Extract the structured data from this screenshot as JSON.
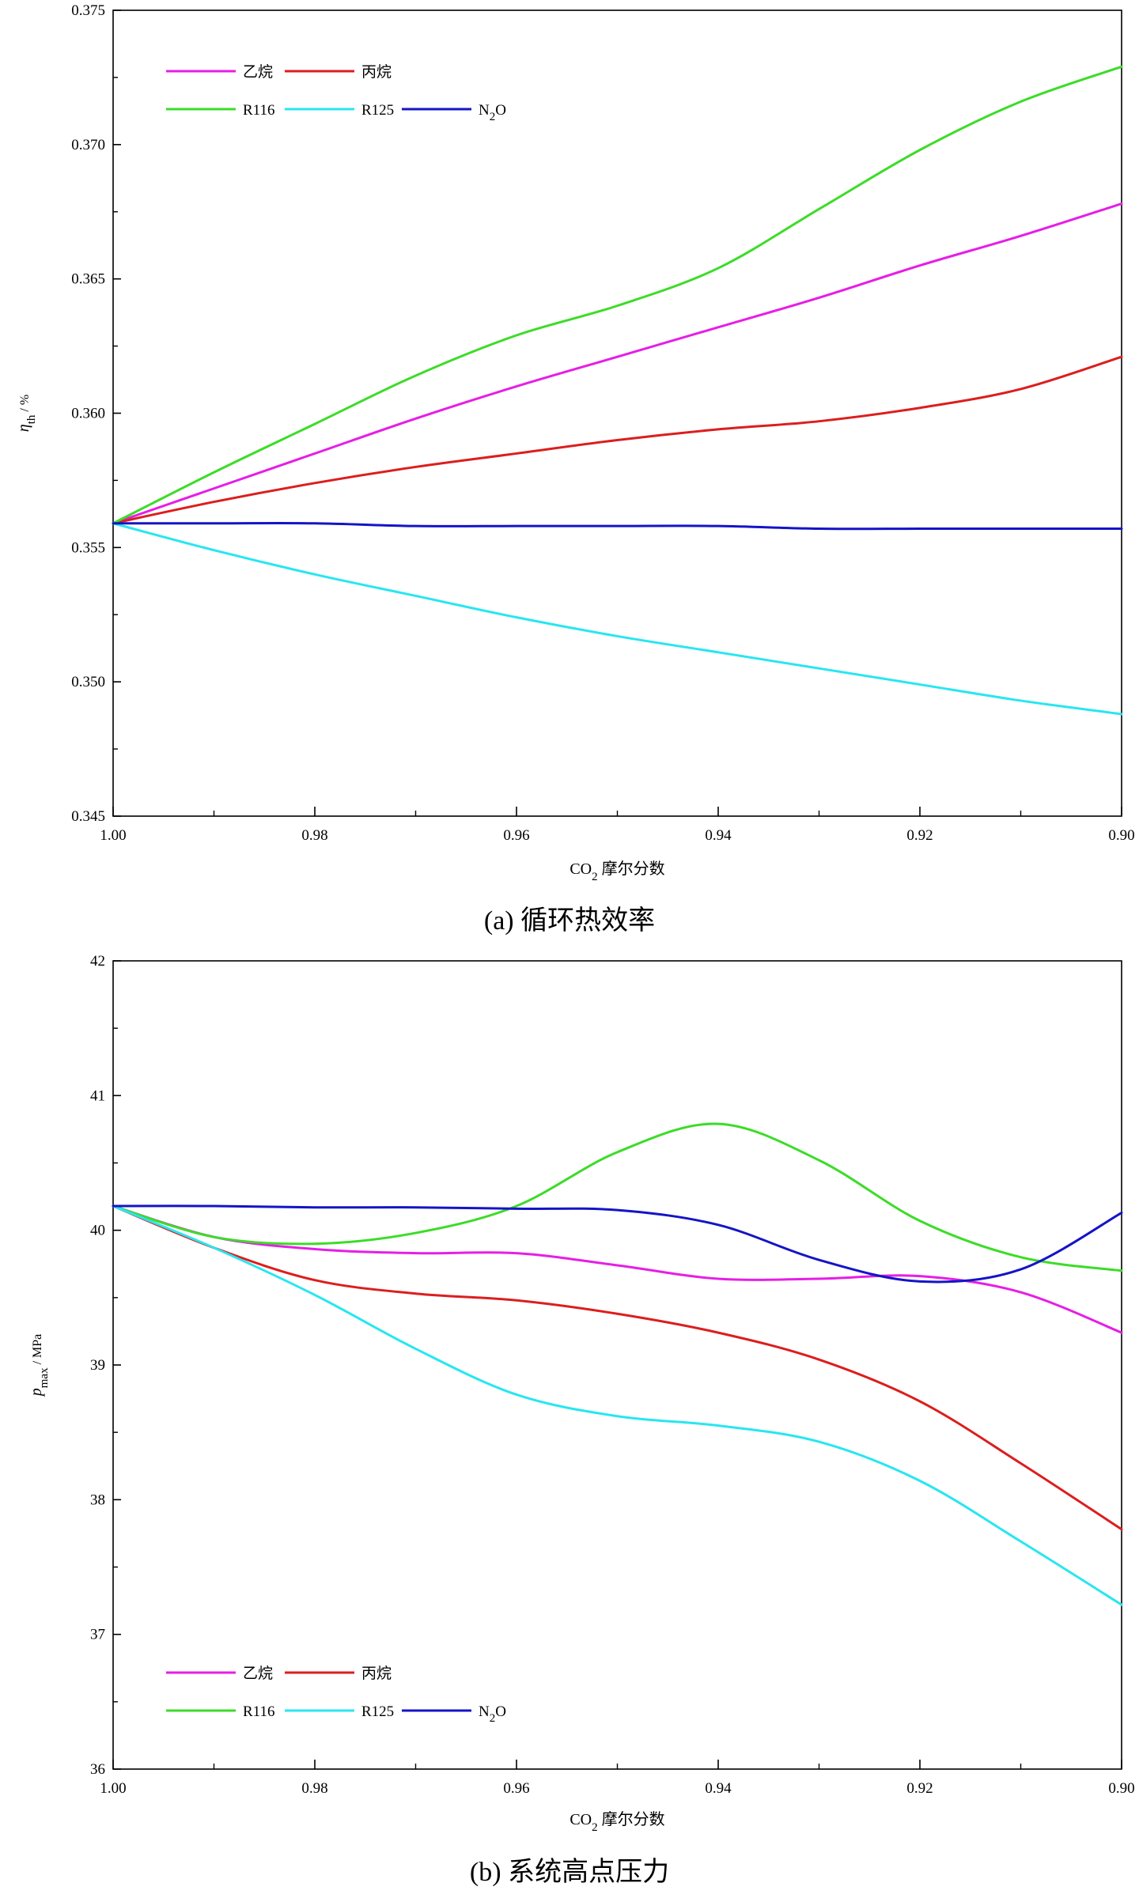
{
  "chart_data": [
    {
      "type": "line",
      "caption_label": "(a)",
      "caption_text": "循环热效率",
      "xlabel": {
        "main": "CO",
        "sub": "2",
        "tail": " 摩尔分数"
      },
      "ylabel": {
        "main": "η",
        "sub": "th",
        "tail": " / %"
      },
      "xlim": [
        1.0,
        0.9
      ],
      "ylim": [
        0.345,
        0.375
      ],
      "xticks": [
        1.0,
        0.98,
        0.96,
        0.94,
        0.92,
        0.9
      ],
      "xtick_labels": [
        "1.00",
        "0.98",
        "0.96",
        "0.94",
        "0.92",
        "0.90"
      ],
      "yticks": [
        0.345,
        0.35,
        0.355,
        0.36,
        0.365,
        0.37,
        0.375
      ],
      "ytick_labels": [
        "0.345",
        "0.350",
        "0.355",
        "0.360",
        "0.365",
        "0.370",
        "0.375"
      ],
      "legend_position": "top-left",
      "series": [
        {
          "name": "乙烷",
          "color": "#e61ee6",
          "x": [
            1.0,
            0.99,
            0.98,
            0.97,
            0.96,
            0.95,
            0.94,
            0.93,
            0.92,
            0.91,
            0.9
          ],
          "values": [
            0.3559,
            0.3572,
            0.3585,
            0.3598,
            0.361,
            0.3621,
            0.3632,
            0.3643,
            0.3655,
            0.3666,
            0.3678
          ]
        },
        {
          "name": "丙烷",
          "color": "#dc1e1e",
          "x": [
            1.0,
            0.99,
            0.98,
            0.97,
            0.96,
            0.95,
            0.94,
            0.93,
            0.92,
            0.91,
            0.9
          ],
          "values": [
            0.3559,
            0.3567,
            0.3574,
            0.358,
            0.3585,
            0.359,
            0.3594,
            0.3597,
            0.3602,
            0.3609,
            0.3621
          ]
        },
        {
          "name": "R116",
          "color": "#3cdc28",
          "x": [
            1.0,
            0.99,
            0.98,
            0.97,
            0.96,
            0.95,
            0.94,
            0.93,
            0.92,
            0.91,
            0.9
          ],
          "values": [
            0.3559,
            0.3578,
            0.3596,
            0.3614,
            0.3629,
            0.364,
            0.3654,
            0.3676,
            0.3698,
            0.3716,
            0.3729
          ]
        },
        {
          "name": "R125",
          "color": "#28e6f0",
          "x": [
            1.0,
            0.99,
            0.98,
            0.97,
            0.96,
            0.95,
            0.94,
            0.93,
            0.92,
            0.91,
            0.9
          ],
          "values": [
            0.3559,
            0.3549,
            0.354,
            0.3532,
            0.3524,
            0.3517,
            0.3511,
            0.3505,
            0.3499,
            0.3493,
            0.3488
          ]
        },
        {
          "name": "N2O",
          "name_main": "N",
          "name_sub": "2",
          "name_tail": "O",
          "color": "#1414c8",
          "x": [
            1.0,
            0.99,
            0.98,
            0.97,
            0.96,
            0.95,
            0.94,
            0.93,
            0.92,
            0.91,
            0.9
          ],
          "values": [
            0.3559,
            0.3559,
            0.3559,
            0.3558,
            0.3558,
            0.3558,
            0.3558,
            0.3557,
            0.3557,
            0.3557,
            0.3557
          ]
        }
      ]
    },
    {
      "type": "line",
      "caption_label": "(b)",
      "caption_text": "系统高点压力",
      "xlabel": {
        "main": "CO",
        "sub": "2",
        "tail": " 摩尔分数"
      },
      "ylabel": {
        "main": "p",
        "sub": "max",
        "tail": " / MPa"
      },
      "xlim": [
        1.0,
        0.9
      ],
      "ylim": [
        36,
        42
      ],
      "xticks": [
        1.0,
        0.98,
        0.96,
        0.94,
        0.92,
        0.9
      ],
      "xtick_labels": [
        "1.00",
        "0.98",
        "0.96",
        "0.94",
        "0.92",
        "0.90"
      ],
      "yticks": [
        36,
        37,
        38,
        39,
        40,
        41,
        42
      ],
      "ytick_labels": [
        "36",
        "37",
        "38",
        "39",
        "40",
        "41",
        "42"
      ],
      "legend_position": "bottom-left",
      "series": [
        {
          "name": "乙烷",
          "color": "#e61ee6",
          "x": [
            1.0,
            0.99,
            0.98,
            0.97,
            0.96,
            0.95,
            0.94,
            0.93,
            0.92,
            0.91,
            0.9
          ],
          "values": [
            40.18,
            39.95,
            39.86,
            39.83,
            39.83,
            39.74,
            39.64,
            39.64,
            39.66,
            39.54,
            39.24
          ]
        },
        {
          "name": "丙烷",
          "color": "#dc1e1e",
          "x": [
            1.0,
            0.99,
            0.98,
            0.97,
            0.96,
            0.95,
            0.94,
            0.93,
            0.92,
            0.91,
            0.9
          ],
          "values": [
            40.18,
            39.87,
            39.63,
            39.53,
            39.48,
            39.38,
            39.24,
            39.04,
            38.73,
            38.27,
            37.78
          ]
        },
        {
          "name": "R116",
          "color": "#3cdc28",
          "x": [
            1.0,
            0.99,
            0.98,
            0.97,
            0.96,
            0.95,
            0.94,
            0.93,
            0.92,
            0.91,
            0.9
          ],
          "values": [
            40.18,
            39.95,
            39.9,
            39.98,
            40.18,
            40.58,
            40.79,
            40.52,
            40.07,
            39.8,
            39.7
          ]
        },
        {
          "name": "R125",
          "color": "#28e6f0",
          "x": [
            1.0,
            0.99,
            0.98,
            0.97,
            0.96,
            0.95,
            0.94,
            0.93,
            0.92,
            0.91,
            0.9
          ],
          "values": [
            40.18,
            39.87,
            39.52,
            39.12,
            38.78,
            38.62,
            38.55,
            38.43,
            38.14,
            37.69,
            37.22
          ]
        },
        {
          "name": "N2O",
          "name_main": "N",
          "name_sub": "2",
          "name_tail": "O",
          "color": "#1414c8",
          "x": [
            1.0,
            0.99,
            0.98,
            0.97,
            0.96,
            0.95,
            0.94,
            0.93,
            0.92,
            0.91,
            0.9
          ],
          "values": [
            40.18,
            40.18,
            40.17,
            40.17,
            40.16,
            40.15,
            40.04,
            39.78,
            39.62,
            39.71,
            40.13
          ]
        }
      ]
    }
  ]
}
